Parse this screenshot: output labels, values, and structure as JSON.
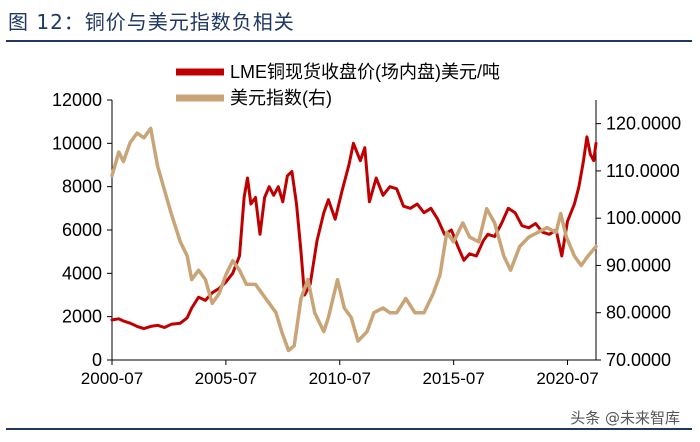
{
  "figure": {
    "title": "图 12：铜价与美元指数负相关",
    "watermark": "头条 @未来智库"
  },
  "chart_data": {
    "type": "line",
    "title": "铜价与美元指数负相关",
    "x_tick_labels": [
      "2000-07",
      "2005-07",
      "2010-07",
      "2015-07",
      "2020-07"
    ],
    "x_tick_years": [
      2000.5,
      2005.5,
      2010.5,
      2015.5,
      2020.5
    ],
    "x_range": [
      2000.5,
      2021.75
    ],
    "left_axis": {
      "ylim": [
        0,
        12000
      ],
      "tick_labels": [
        "0",
        "2000",
        "4000",
        "6000",
        "8000",
        "10000",
        "12000"
      ]
    },
    "right_axis": {
      "ylim": [
        70,
        125
      ],
      "tick_labels": [
        "70.0000",
        "80.0000",
        "90.0000",
        "100.0000",
        "110.0000",
        "120.0000"
      ]
    },
    "legend": {
      "position": "top",
      "entries": [
        "LME铜现货收盘价(场内盘)美元/吨",
        "美元指数(右)"
      ]
    },
    "series": [
      {
        "name": "LME铜现货收盘价(场内盘)美元/吨",
        "axis": "left",
        "color": "#c00000",
        "points": [
          [
            2000.5,
            1850
          ],
          [
            2000.8,
            1900
          ],
          [
            2001.0,
            1800
          ],
          [
            2001.3,
            1700
          ],
          [
            2001.6,
            1550
          ],
          [
            2001.9,
            1450
          ],
          [
            2002.2,
            1550
          ],
          [
            2002.5,
            1600
          ],
          [
            2002.8,
            1500
          ],
          [
            2003.1,
            1650
          ],
          [
            2003.5,
            1700
          ],
          [
            2003.8,
            1950
          ],
          [
            2004.0,
            2400
          ],
          [
            2004.3,
            2900
          ],
          [
            2004.6,
            2750
          ],
          [
            2004.9,
            3100
          ],
          [
            2005.2,
            3300
          ],
          [
            2005.5,
            3600
          ],
          [
            2005.8,
            4000
          ],
          [
            2006.1,
            4800
          ],
          [
            2006.3,
            7500
          ],
          [
            2006.45,
            8400
          ],
          [
            2006.6,
            7200
          ],
          [
            2006.8,
            7500
          ],
          [
            2007.0,
            5800
          ],
          [
            2007.2,
            7500
          ],
          [
            2007.4,
            8000
          ],
          [
            2007.6,
            7600
          ],
          [
            2007.8,
            8000
          ],
          [
            2008.0,
            7300
          ],
          [
            2008.2,
            8500
          ],
          [
            2008.4,
            8700
          ],
          [
            2008.6,
            7200
          ],
          [
            2008.8,
            5000
          ],
          [
            2008.95,
            3000
          ],
          [
            2009.2,
            3500
          ],
          [
            2009.5,
            5500
          ],
          [
            2009.8,
            6800
          ],
          [
            2010.0,
            7400
          ],
          [
            2010.3,
            6500
          ],
          [
            2010.6,
            7800
          ],
          [
            2010.9,
            9000
          ],
          [
            2011.1,
            10000
          ],
          [
            2011.4,
            9200
          ],
          [
            2011.6,
            9800
          ],
          [
            2011.8,
            7300
          ],
          [
            2012.1,
            8400
          ],
          [
            2012.4,
            7600
          ],
          [
            2012.7,
            8000
          ],
          [
            2013.0,
            7900
          ],
          [
            2013.3,
            7100
          ],
          [
            2013.6,
            7000
          ],
          [
            2013.9,
            7200
          ],
          [
            2014.2,
            6800
          ],
          [
            2014.5,
            7000
          ],
          [
            2014.8,
            6500
          ],
          [
            2015.1,
            5800
          ],
          [
            2015.4,
            6000
          ],
          [
            2015.7,
            5200
          ],
          [
            2015.95,
            4600
          ],
          [
            2016.2,
            4900
          ],
          [
            2016.5,
            4800
          ],
          [
            2016.8,
            5500
          ],
          [
            2017.0,
            5800
          ],
          [
            2017.3,
            5700
          ],
          [
            2017.6,
            6300
          ],
          [
            2017.9,
            7000
          ],
          [
            2018.2,
            6800
          ],
          [
            2018.5,
            6200
          ],
          [
            2018.8,
            6100
          ],
          [
            2019.1,
            6300
          ],
          [
            2019.4,
            5900
          ],
          [
            2019.7,
            5800
          ],
          [
            2020.0,
            6000
          ],
          [
            2020.25,
            4800
          ],
          [
            2020.5,
            6400
          ],
          [
            2020.8,
            7200
          ],
          [
            2021.0,
            8000
          ],
          [
            2021.2,
            9200
          ],
          [
            2021.35,
            10300
          ],
          [
            2021.5,
            9500
          ],
          [
            2021.65,
            9200
          ],
          [
            2021.75,
            10000
          ]
        ]
      },
      {
        "name": "美元指数(右)",
        "axis": "right",
        "color": "#c8a477",
        "points": [
          [
            2000.5,
            109
          ],
          [
            2000.8,
            114
          ],
          [
            2001.0,
            112
          ],
          [
            2001.3,
            116
          ],
          [
            2001.6,
            118
          ],
          [
            2001.9,
            117
          ],
          [
            2002.2,
            119
          ],
          [
            2002.5,
            111
          ],
          [
            2002.8,
            106
          ],
          [
            2003.1,
            101
          ],
          [
            2003.5,
            95
          ],
          [
            2003.8,
            92
          ],
          [
            2004.0,
            87
          ],
          [
            2004.3,
            89
          ],
          [
            2004.6,
            87
          ],
          [
            2004.9,
            82
          ],
          [
            2005.2,
            84
          ],
          [
            2005.5,
            88
          ],
          [
            2005.8,
            91
          ],
          [
            2006.1,
            89
          ],
          [
            2006.4,
            86
          ],
          [
            2006.8,
            86
          ],
          [
            2007.1,
            84
          ],
          [
            2007.4,
            82
          ],
          [
            2007.7,
            80
          ],
          [
            2007.95,
            76
          ],
          [
            2008.25,
            72
          ],
          [
            2008.5,
            73
          ],
          [
            2008.8,
            83
          ],
          [
            2009.1,
            87
          ],
          [
            2009.4,
            80
          ],
          [
            2009.8,
            76
          ],
          [
            2010.0,
            79
          ],
          [
            2010.4,
            87
          ],
          [
            2010.7,
            81
          ],
          [
            2011.0,
            79
          ],
          [
            2011.3,
            74
          ],
          [
            2011.7,
            76
          ],
          [
            2012.0,
            80
          ],
          [
            2012.4,
            81
          ],
          [
            2012.7,
            80
          ],
          [
            2013.0,
            80
          ],
          [
            2013.4,
            83
          ],
          [
            2013.8,
            80
          ],
          [
            2014.2,
            80
          ],
          [
            2014.6,
            84
          ],
          [
            2014.9,
            88
          ],
          [
            2015.2,
            97
          ],
          [
            2015.5,
            95
          ],
          [
            2015.9,
            99
          ],
          [
            2016.2,
            96
          ],
          [
            2016.6,
            95
          ],
          [
            2016.95,
            102
          ],
          [
            2017.3,
            99
          ],
          [
            2017.7,
            92
          ],
          [
            2018.0,
            89
          ],
          [
            2018.4,
            94
          ],
          [
            2018.8,
            96
          ],
          [
            2019.2,
            97
          ],
          [
            2019.6,
            98
          ],
          [
            2020.0,
            97
          ],
          [
            2020.2,
            101
          ],
          [
            2020.45,
            96
          ],
          [
            2020.8,
            92
          ],
          [
            2021.1,
            90
          ],
          [
            2021.4,
            92
          ],
          [
            2021.75,
            94
          ]
        ]
      }
    ]
  }
}
